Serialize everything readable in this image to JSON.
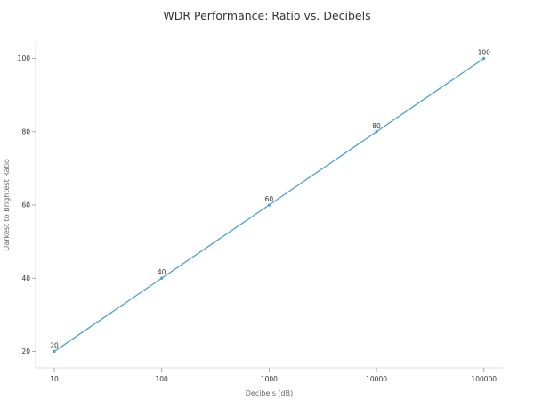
{
  "chart_data": {
    "type": "line",
    "title": "WDR Performance: Ratio vs. Decibels",
    "xlabel": "Decibels (dB)",
    "ylabel": "Darkest to Brightest Ratio",
    "x_scale": "log",
    "x": [
      10,
      100,
      1000,
      10000,
      100000
    ],
    "x_tick_labels": [
      "10",
      "100",
      "1000",
      "10000",
      "100000"
    ],
    "series": [
      {
        "values": [
          20,
          40,
          60,
          80,
          100
        ],
        "data_labels": [
          "20",
          "40",
          "60",
          "80",
          "100"
        ]
      }
    ],
    "y_ticks": [
      20,
      40,
      60,
      80,
      100
    ],
    "y_tick_labels": [
      "20",
      "40",
      "60",
      "80",
      "100"
    ],
    "xlim": [
      6.7,
      150000
    ],
    "ylim": [
      15.5,
      104.5
    ],
    "grid": false,
    "line_color": "#4a9fd8",
    "axis_color": "#dddddd"
  }
}
